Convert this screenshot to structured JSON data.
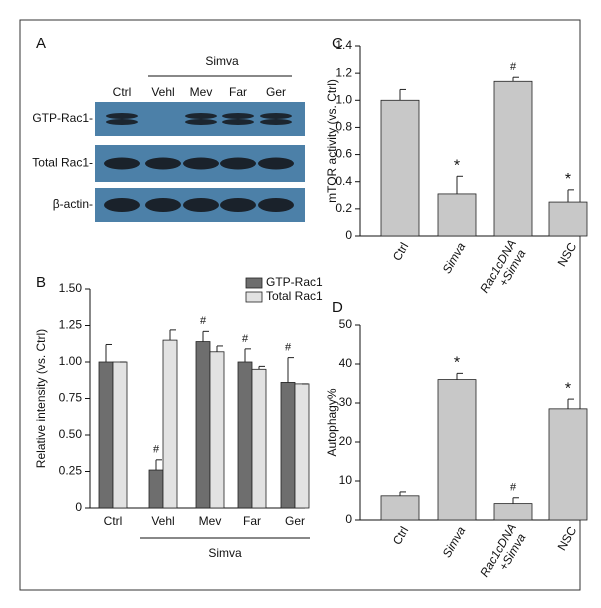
{
  "blot": {
    "panel": "A",
    "group_label": "Simva",
    "lanes": [
      "Ctrl",
      "Vehl",
      "Mev",
      "Far",
      "Ger"
    ],
    "rows": [
      "GTP-Rac1-",
      "Total Rac1-",
      "β-actin-"
    ]
  },
  "chart_data": [
    {
      "type": "bar",
      "panel": "B",
      "ylabel": "Relative intensity (vs. Ctrl)",
      "categories": [
        "Ctrl",
        "Vehl",
        "Mev",
        "Far",
        "Ger"
      ],
      "group_label": "Simva",
      "ylim": [
        0,
        1.5
      ],
      "yticks": [
        0,
        0.25,
        {
          "value": 0.5,
          "label": "0.50"
        },
        0.75,
        {
          "value": 1,
          "label": "1.00"
        },
        1.25,
        {
          "value": 1.5,
          "label": "1.50"
        }
      ],
      "series": [
        {
          "name": "GTP-Rac1",
          "color": "#6e6e6e",
          "values": [
            1.0,
            0.26,
            1.14,
            1.0,
            0.86
          ],
          "errors": [
            0.12,
            0.07,
            0.07,
            0.09,
            0.17
          ],
          "annotations": [
            null,
            "#",
            "#",
            "#",
            "#"
          ]
        },
        {
          "name": "Total Rac1",
          "color": "#e2e2e2",
          "values": [
            1.0,
            1.15,
            1.07,
            0.95,
            0.85
          ],
          "errors": [
            0,
            0.07,
            0.04,
            0.02,
            0
          ]
        }
      ]
    },
    {
      "type": "bar",
      "panel": "C",
      "ylabel": "mTOR activity (vs. Ctrl)",
      "categories": [
        "Ctrl",
        "Simva",
        "Rac1cDNA +Simva",
        "NSC"
      ],
      "ylim": [
        0,
        1.4
      ],
      "yticks": [
        0,
        0.2,
        0.4,
        0.6,
        0.8,
        {
          "value": 1,
          "label": "1.0"
        },
        1.2,
        1.4
      ],
      "series": [
        {
          "color": "#c8c8c8",
          "values": [
            1.0,
            0.31,
            1.14,
            0.25
          ],
          "errors": [
            0.08,
            0.13,
            0.03,
            0.09
          ],
          "annotations": [
            null,
            "*",
            "#",
            "*"
          ]
        }
      ]
    },
    {
      "type": "bar",
      "panel": "D",
      "ylabel": "Autophagy%",
      "categories": [
        "Ctrl",
        "Simva",
        "Rac1cDNA +Simva",
        "NSC"
      ],
      "ylim": [
        0,
        50
      ],
      "yticks": [
        0,
        10,
        20,
        30,
        40,
        50
      ],
      "series": [
        {
          "color": "#c8c8c8",
          "values": [
            6.2,
            36,
            4.2,
            28.5
          ],
          "errors": [
            1,
            1.6,
            1.5,
            2.5
          ],
          "annotations": [
            null,
            "*",
            "#",
            "*"
          ]
        }
      ]
    }
  ]
}
